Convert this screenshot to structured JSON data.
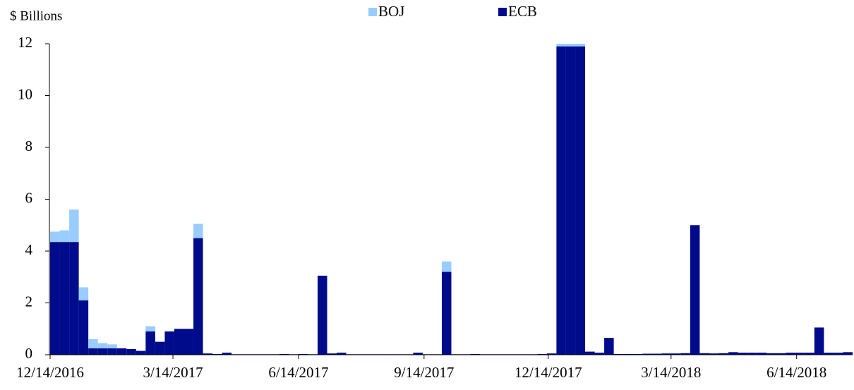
{
  "chart_data": {
    "type": "stacked-bar",
    "y_label": "$ Billions",
    "x": [
      "12/14/2016",
      "12/21/2016",
      "12/28/2016",
      "1/4/2017",
      "1/11/2017",
      "1/18/2017",
      "1/25/2017",
      "2/1/2017",
      "2/8/2017",
      "2/15/2017",
      "2/22/2017",
      "3/1/2017",
      "3/8/2017",
      "3/15/2017",
      "3/22/2017",
      "3/29/2017",
      "4/5/2017",
      "4/12/2017",
      "4/19/2017",
      "4/26/2017",
      "5/3/2017",
      "5/10/2017",
      "5/17/2017",
      "5/24/2017",
      "5/31/2017",
      "6/7/2017",
      "6/14/2017",
      "6/21/2017",
      "6/28/2017",
      "7/5/2017",
      "7/12/2017",
      "7/19/2017",
      "7/26/2017",
      "8/2/2017",
      "8/9/2017",
      "8/16/2017",
      "8/23/2017",
      "8/30/2017",
      "9/6/2017",
      "9/13/2017",
      "9/20/2017",
      "9/27/2017",
      "10/4/2017",
      "10/11/2017",
      "10/18/2017",
      "10/25/2017",
      "11/1/2017",
      "11/8/2017",
      "11/15/2017",
      "11/22/2017",
      "11/29/2017",
      "12/6/2017",
      "12/13/2017",
      "12/20/2017",
      "12/27/2017",
      "1/3/2018",
      "1/10/2018",
      "1/17/2018",
      "1/24/2018",
      "1/31/2018",
      "2/7/2018",
      "2/14/2018",
      "2/21/2018",
      "2/28/2018",
      "3/7/2018",
      "3/14/2018",
      "3/21/2018",
      "3/28/2018",
      "4/4/2018",
      "4/11/2018",
      "4/18/2018",
      "4/25/2018",
      "5/2/2018",
      "5/9/2018",
      "5/16/2018",
      "5/23/2018",
      "5/30/2018",
      "6/6/2018",
      "6/13/2018",
      "6/20/2018",
      "6/27/2018",
      "7/4/2018",
      "7/11/2018",
      "7/18/2018"
    ],
    "series": [
      {
        "name": "BOJ",
        "color": "#99ccff",
        "values": [
          0.4,
          0.45,
          1.25,
          0.5,
          0.35,
          0.2,
          0.15,
          0,
          0,
          0,
          0.2,
          0,
          0,
          0,
          0,
          0.55,
          0,
          0,
          0,
          0,
          0,
          0,
          0,
          0,
          0,
          0,
          0,
          0,
          0,
          0,
          0,
          0,
          0,
          0,
          0,
          0,
          0,
          0,
          0,
          0,
          0,
          0.4,
          0,
          0,
          0,
          0,
          0,
          0,
          0,
          0,
          0,
          0,
          0,
          0.1,
          0.1,
          0.1,
          0,
          0,
          0,
          0,
          0,
          0,
          0,
          0,
          0,
          0,
          0,
          0,
          0,
          0,
          0,
          0,
          0,
          0,
          0,
          0,
          0,
          0,
          0,
          0,
          0,
          0,
          0,
          0
        ]
      },
      {
        "name": "ECB",
        "color": "#000b8c",
        "values": [
          4.35,
          4.35,
          4.35,
          2.1,
          0.25,
          0.25,
          0.25,
          0.25,
          0.22,
          0.15,
          0.9,
          0.5,
          0.9,
          1.0,
          1.0,
          4.5,
          0.05,
          0.03,
          0.08,
          0.02,
          0.02,
          0.02,
          0.02,
          0.02,
          0.03,
          0.02,
          0.03,
          0.02,
          3.05,
          0.05,
          0.08,
          0.02,
          0.02,
          0.02,
          0.02,
          0.02,
          0.02,
          0.02,
          0.08,
          0.02,
          0.02,
          3.2,
          0.02,
          0.02,
          0.03,
          0.02,
          0.02,
          0.02,
          0.02,
          0.02,
          0.02,
          0.03,
          0.05,
          11.9,
          11.9,
          11.9,
          0.12,
          0.08,
          0.65,
          0.03,
          0.03,
          0.03,
          0.04,
          0.04,
          0.05,
          0.05,
          0.06,
          5.0,
          0.06,
          0.05,
          0.06,
          0.1,
          0.08,
          0.08,
          0.08,
          0.06,
          0.06,
          0.08,
          0.08,
          0.08,
          1.05,
          0.08,
          0.08,
          0.1
        ]
      }
    ],
    "xlim": [
      "12/14/2016",
      "7/25/2018"
    ],
    "xticks": [
      "12/14/2016",
      "3/14/2017",
      "6/14/2017",
      "9/14/2017",
      "12/14/2017",
      "3/14/2018",
      "6/14/2018"
    ],
    "ylim": [
      0,
      12
    ],
    "yticks": [
      0,
      2,
      4,
      6,
      8,
      10,
      12
    ],
    "grid": false,
    "legend": "top"
  }
}
